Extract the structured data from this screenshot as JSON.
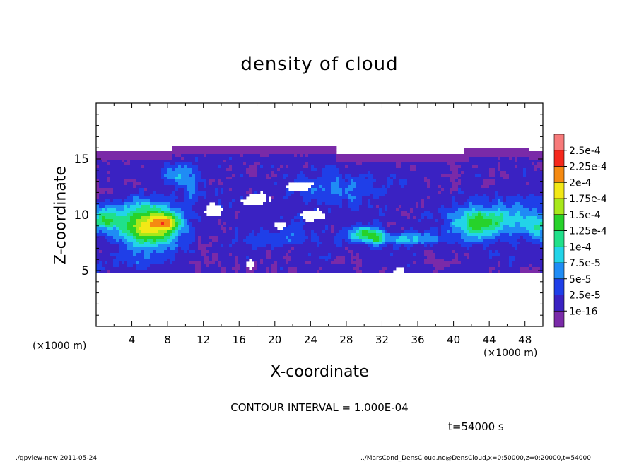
{
  "page": {
    "footer_left": "./gpview-new   2011-05-24",
    "footer_right": "../MarsCond_DensCloud.nc@DensCloud,x=0:50000,z=0:20000,t=54000"
  },
  "chart_data": {
    "type": "heatmap",
    "title": "density of cloud",
    "xlabel": "X-coordinate",
    "ylabel": "Z-coordinate",
    "x_unit_label": "(×1000 m)",
    "z_unit_label": "(×1000 m)",
    "xlim": [
      0,
      50
    ],
    "ylim": [
      0,
      20
    ],
    "x_ticks": [
      "4",
      "8",
      "12",
      "16",
      "20",
      "24",
      "28",
      "32",
      "36",
      "40",
      "44",
      "48"
    ],
    "y_ticks": [
      "5",
      "10",
      "15"
    ],
    "contour_interval_text": "CONTOUR INTERVAL = 1.000E-04",
    "time_text": "t=54000 s",
    "colorbar": {
      "labels": [
        "1e-16",
        "2.5e-5",
        "5e-5",
        "7.5e-5",
        "1e-4",
        "1.25e-4",
        "1.5e-4",
        "1.75e-4",
        "2e-4",
        "2.25e-4",
        "2.5e-4"
      ],
      "colors": [
        "#7a2aa8",
        "#3a22c2",
        "#1f3fe8",
        "#1f8cf5",
        "#22d4e8",
        "#20e08a",
        "#27d22a",
        "#a8e81a",
        "#f2e816",
        "#f58a12",
        "#f5281c",
        "#f77a7a"
      ]
    },
    "color_scale": [
      "#7a2aa8",
      "#3a22c2",
      "#1f3fe8",
      "#1f8cf5",
      "#22d4e8",
      "#20e08a",
      "#27d22a",
      "#a8e81a",
      "#f2e816",
      "#f58a12",
      "#f5281c",
      "#f77a7a"
    ]
  }
}
